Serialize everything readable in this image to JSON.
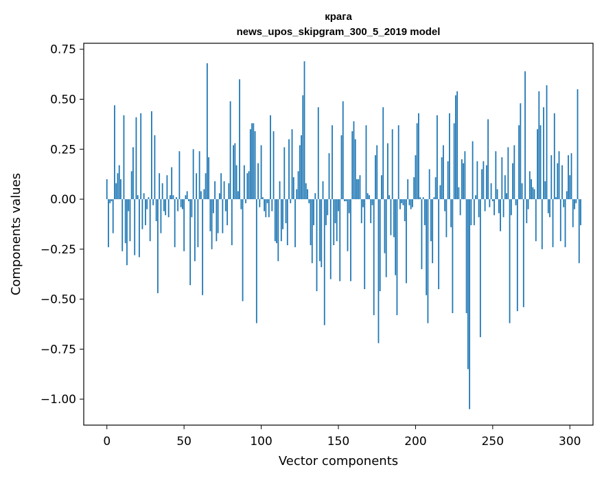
{
  "chart_data": {
    "type": "bar",
    "title": "крага",
    "subtitle": "news_upos_skipgram_300_5_2019 model",
    "xlabel": "Vector components",
    "ylabel": "Components values",
    "xlim": [
      -15,
      315
    ],
    "ylim": [
      -1.13,
      0.78
    ],
    "xticks": [
      0,
      50,
      100,
      150,
      200,
      250,
      300
    ],
    "yticks": [
      0.75,
      0.5,
      0.25,
      0.0,
      -0.25,
      -0.5,
      -0.75,
      -1.0
    ],
    "ytick_labels": [
      "0.75",
      "0.50",
      "0.25",
      "0.00",
      "−0.25",
      "−0.50",
      "−0.75",
      "−1.00"
    ],
    "bar_color": "#1f77b4",
    "grid": false,
    "legend": "none",
    "values": [
      0.1,
      -0.24,
      -0.02,
      -0.01,
      -0.17,
      0.47,
      0.08,
      0.13,
      0.17,
      0.1,
      -0.26,
      0.42,
      -0.22,
      -0.33,
      -0.06,
      -0.21,
      0.14,
      0.26,
      -0.28,
      0.41,
      0.02,
      -0.29,
      0.43,
      -0.15,
      0.03,
      -0.13,
      -0.05,
      0.01,
      -0.21,
      0.44,
      -0.03,
      0.32,
      -0.11,
      -0.47,
      0.13,
      -0.17,
      0.08,
      -0.06,
      -0.08,
      0.12,
      -0.09,
      0.02,
      0.16,
      0.02,
      -0.24,
      0.01,
      -0.06,
      0.24,
      -0.04,
      -0.05,
      -0.26,
      0.02,
      0.04,
      -0.01,
      -0.43,
      -0.09,
      0.25,
      -0.31,
      0.13,
      -0.24,
      0.24,
      0.04,
      -0.48,
      0.05,
      0.13,
      0.68,
      0.21,
      -0.16,
      -0.25,
      -0.07,
      0.09,
      -0.21,
      -0.17,
      0.03,
      0.13,
      -0.17,
      0.09,
      -0.06,
      -0.13,
      0.08,
      0.49,
      -0.23,
      0.27,
      0.28,
      0.17,
      0.04,
      0.6,
      -0.05,
      -0.51,
      0.17,
      -0.02,
      0.13,
      0.14,
      0.35,
      0.38,
      0.38,
      0.34,
      -0.62,
      0.18,
      -0.04,
      0.27,
      0.01,
      -0.06,
      -0.09,
      -0.02,
      -0.09,
      0.42,
      -0.06,
      0.34,
      -0.21,
      -0.22,
      -0.31,
      0.09,
      -0.21,
      -0.15,
      0.26,
      -0.12,
      -0.23,
      0.3,
      -0.02,
      0.35,
      0.11,
      -0.24,
      0.05,
      0.14,
      0.27,
      0.32,
      0.52,
      0.69,
      0.08,
      0.05,
      -0.02,
      -0.23,
      -0.32,
      -0.13,
      0.03,
      -0.46,
      0.46,
      -0.31,
      -0.34,
      0.09,
      -0.63,
      -0.13,
      -0.08,
      0.23,
      -0.4,
      0.37,
      -0.23,
      -0.12,
      -0.21,
      -0.06,
      -0.41,
      0.32,
      0.49,
      -0.01,
      -0.01,
      -0.26,
      -0.07,
      -0.41,
      0.34,
      0.39,
      0.3,
      0.1,
      0.1,
      0.12,
      -0.12,
      -0.04,
      -0.45,
      0.37,
      0.03,
      0.02,
      -0.12,
      -0.03,
      -0.58,
      0.22,
      0.27,
      -0.72,
      -0.46,
      0.12,
      0.46,
      -0.27,
      -0.39,
      0.28,
      0.02,
      -0.18,
      0.35,
      -0.19,
      -0.38,
      -0.58,
      0.37,
      -0.05,
      -0.02,
      -0.03,
      -0.11,
      -0.42,
      0.1,
      -0.03,
      -0.05,
      -0.04,
      0.11,
      0.22,
      0.38,
      0.43,
      0.01,
      -0.35,
      0.01,
      -0.13,
      -0.48,
      -0.62,
      0.15,
      -0.21,
      -0.32,
      0.01,
      0.11,
      0.42,
      -0.45,
      0.07,
      0.21,
      0.27,
      -0.06,
      -0.19,
      0.19,
      0.43,
      -0.14,
      -0.57,
      0.38,
      0.52,
      0.54,
      0.06,
      -0.08,
      0.2,
      0.18,
      0.24,
      -0.57,
      -0.85,
      -1.05,
      -0.13,
      0.29,
      -0.13,
      0.02,
      0.19,
      -0.09,
      -0.69,
      0.15,
      0.19,
      -0.06,
      0.17,
      0.4,
      -0.04,
      0.08,
      -0.01,
      -0.08,
      0.24,
      0.05,
      -0.07,
      -0.16,
      0.21,
      -0.09,
      0.12,
      0.03,
      0.26,
      -0.62,
      -0.08,
      0.18,
      0.27,
      -0.03,
      -0.56,
      0.37,
      0.48,
      0.08,
      -0.54,
      0.64,
      -0.12,
      -0.05,
      0.14,
      0.1,
      0.06,
      0.05,
      -0.21,
      0.35,
      0.54,
      0.37,
      -0.25,
      0.46,
      0.09,
      0.57,
      -0.07,
      -0.09,
      0.22,
      -0.24,
      0.43,
      0.01,
      0.18,
      0.24,
      -0.21,
      0.17,
      -0.04,
      -0.24,
      0.04,
      0.22,
      0.12,
      0.23,
      -0.14,
      -0.05,
      -0.02,
      0.55,
      -0.32,
      -0.13
    ]
  }
}
